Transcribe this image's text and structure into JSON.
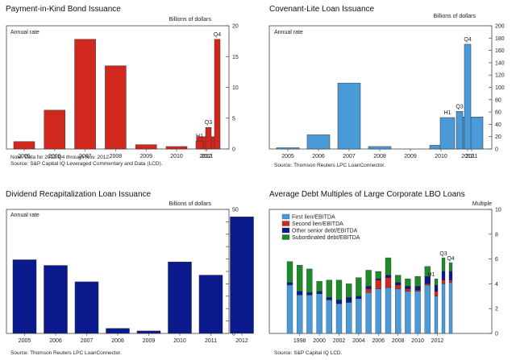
{
  "chart_data": [
    {
      "type": "bar",
      "title": "Payment-in-Kind Bond Issuance",
      "unit_label": "Billions of dollars",
      "rate_label": "Annual rate",
      "color": "#d0281c",
      "ylim": [
        0,
        20
      ],
      "yticks": [
        0,
        5,
        10,
        15,
        20
      ],
      "categories": [
        "2005",
        "2006",
        "2007",
        "2008",
        "2009",
        "2010",
        "2011",
        "H1",
        "Q3",
        "Q4"
      ],
      "values": [
        1.2,
        6.3,
        17.8,
        13.5,
        0.7,
        0.4,
        2.0,
        1.3,
        3.5,
        17.8
      ],
      "bar_labels": [
        "",
        "",
        "",
        "",
        "",
        "",
        "",
        "H1",
        "Q3",
        "Q4"
      ],
      "xlabels": [
        "2005",
        "2006",
        "2007",
        "2008",
        "2009",
        "2010",
        "2011",
        "2012"
      ],
      "notes": [
        "Note: Data for 2012:Q4 through Nov. 2012.",
        "Source: S&P Capital IQ Leveraged Commentary and Data (LCD)."
      ]
    },
    {
      "type": "bar",
      "title": "Covenant-Lite Loan Issuance",
      "unit_label": "Billions of dollars",
      "rate_label": "Annual rate",
      "color": "#4a9ad8",
      "ylim": [
        0,
        200
      ],
      "yticks": [
        0,
        20,
        40,
        60,
        80,
        100,
        120,
        140,
        160,
        180,
        200
      ],
      "categories": [
        "2005",
        "2006",
        "2007",
        "2008",
        "2009",
        "2010",
        "2011",
        "H1",
        "Q3",
        "Q4"
      ],
      "values": [
        2,
        23,
        107,
        4,
        0,
        6,
        52,
        51,
        61,
        170
      ],
      "bar_labels": [
        "",
        "",
        "",
        "",
        "",
        "",
        "",
        "H1",
        "Q3",
        "Q4"
      ],
      "xlabels": [
        "2005",
        "2006",
        "2007",
        "2008",
        "2009",
        "2010",
        "2011",
        "2012"
      ],
      "notes": [
        "Source: Thomson Reuters LPC LoanConnector."
      ]
    },
    {
      "type": "bar",
      "title": "Dividend Recapitalization Loan Issuance",
      "unit_label": "Billions of dollars",
      "rate_label": "Annual rate",
      "color": "#0a1a8c",
      "ylim": [
        0,
        50
      ],
      "yticks": [
        0,
        5,
        10,
        15,
        20,
        25,
        30,
        35,
        40,
        45,
        50
      ],
      "categories": [
        "2005",
        "2006",
        "2007",
        "2008",
        "2009",
        "2010",
        "2011",
        "2012"
      ],
      "values": [
        29.7,
        27.4,
        20.8,
        2.0,
        1.0,
        28.8,
        23.5,
        47.0
      ],
      "xlabels": [
        "2005",
        "2006",
        "2007",
        "2008",
        "2009",
        "2010",
        "2011",
        "2012"
      ],
      "notes": [
        "Source: Thomson Reuters LPC LoanConnector."
      ]
    },
    {
      "type": "stacked-bar",
      "title": "Average Debt Multiples of Large Corporate LBO Loans",
      "unit_label": "Multiple",
      "ylim": [
        0,
        10
      ],
      "yticks": [
        0,
        2,
        4,
        6,
        8,
        10
      ],
      "xlabels": [
        "1998",
        "2000",
        "2002",
        "2004",
        "2006",
        "2008",
        "2010",
        "2012"
      ],
      "legend": [
        {
          "name": "First lien/EBITDA",
          "color": "#4a9ad8"
        },
        {
          "name": "Second lien/EBITDA",
          "color": "#d0281c"
        },
        {
          "name": "Other senior debt/EBITDA",
          "color": "#0a1a8c"
        },
        {
          "name": "Subordinated debt/EBITDA",
          "color": "#1f8a2a"
        }
      ],
      "periods": [
        "1997",
        "1998",
        "1999",
        "2000",
        "2001",
        "2002",
        "2003",
        "2004",
        "2005",
        "2006",
        "2007",
        "2008",
        "2009",
        "2010",
        "2011",
        "H1",
        "Q3",
        "Q4"
      ],
      "period_labels": [
        "",
        "",
        "",
        "",
        "",
        "",
        "",
        "",
        "",
        "",
        "",
        "",
        "",
        "",
        "",
        "H1",
        "Q3",
        "Q4"
      ],
      "series": [
        {
          "name": "First lien/EBITDA",
          "values": [
            3.9,
            3.1,
            3.1,
            3.2,
            2.7,
            2.4,
            2.5,
            2.8,
            3.3,
            3.6,
            3.7,
            3.6,
            3.4,
            3.4,
            3.9,
            3.0,
            4.0,
            4.1
          ]
        },
        {
          "name": "Second lien/EBITDA",
          "values": [
            0,
            0,
            0,
            0,
            0,
            0,
            0,
            0,
            0.3,
            0.7,
            0.8,
            0.3,
            0.2,
            0.1,
            0.1,
            0.4,
            0.3,
            0.2
          ]
        },
        {
          "name": "Other senior debt/EBITDA",
          "values": [
            0.2,
            0.3,
            0.2,
            0.2,
            0.2,
            0.3,
            0.4,
            0.2,
            0.2,
            0.1,
            0.2,
            0.2,
            0.2,
            0.3,
            0.6,
            0.5,
            0.7,
            0.7
          ]
        },
        {
          "name": "Subordinated debt/EBITDA",
          "values": [
            1.7,
            2.1,
            1.9,
            0.8,
            1.4,
            1.6,
            1.1,
            1.5,
            1.3,
            0.6,
            1.4,
            0.6,
            0.6,
            0.8,
            0.8,
            0.5,
            1.1,
            0.7
          ]
        }
      ],
      "notes": [
        "Source: S&P Capital IQ LCD."
      ]
    }
  ]
}
